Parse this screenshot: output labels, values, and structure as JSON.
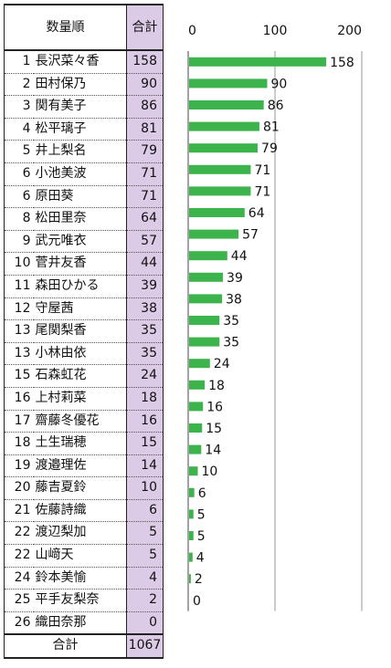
{
  "table": {
    "header_label": "数量順",
    "header_total": "合計",
    "footer_label": "合計",
    "footer_total": "1067",
    "rows": [
      {
        "rank": "1",
        "name": "長沢菜々香",
        "total": "158"
      },
      {
        "rank": "2",
        "name": "田村保乃",
        "total": "90"
      },
      {
        "rank": "3",
        "name": "関有美子",
        "total": "86"
      },
      {
        "rank": "4",
        "name": "松平璃子",
        "total": "81"
      },
      {
        "rank": "5",
        "name": "井上梨名",
        "total": "79"
      },
      {
        "rank": "6",
        "name": "小池美波",
        "total": "71"
      },
      {
        "rank": "6",
        "name": "原田葵",
        "total": "71"
      },
      {
        "rank": "8",
        "name": "松田里奈",
        "total": "64"
      },
      {
        "rank": "9",
        "name": "武元唯衣",
        "total": "57"
      },
      {
        "rank": "10",
        "name": "菅井友香",
        "total": "44"
      },
      {
        "rank": "11",
        "name": "森田ひかる",
        "total": "39"
      },
      {
        "rank": "12",
        "name": "守屋茜",
        "total": "38"
      },
      {
        "rank": "13",
        "name": "尾関梨香",
        "total": "35"
      },
      {
        "rank": "13",
        "name": "小林由依",
        "total": "35"
      },
      {
        "rank": "15",
        "name": "石森虹花",
        "total": "24"
      },
      {
        "rank": "16",
        "name": "上村莉菜",
        "total": "18"
      },
      {
        "rank": "17",
        "name": "齋藤冬優花",
        "total": "16"
      },
      {
        "rank": "18",
        "name": "土生瑞穂",
        "total": "15"
      },
      {
        "rank": "19",
        "name": "渡邉理佐",
        "total": "14"
      },
      {
        "rank": "20",
        "name": "藤吉夏鈴",
        "total": "10"
      },
      {
        "rank": "21",
        "name": "佐藤詩織",
        "total": "6"
      },
      {
        "rank": "22",
        "name": "渡辺梨加",
        "total": "5"
      },
      {
        "rank": "22",
        "name": "山﨑天",
        "total": "5"
      },
      {
        "rank": "24",
        "name": "鈴本美愉",
        "total": "4"
      },
      {
        "rank": "25",
        "name": "平手友梨奈",
        "total": "2"
      },
      {
        "rank": "26",
        "name": "織田奈那",
        "total": "0"
      }
    ]
  },
  "colors": {
    "bar": "#3cb44b",
    "total_column": "#dccbe6",
    "gridline": "#999999"
  },
  "chart_data": {
    "type": "bar",
    "orientation": "horizontal",
    "title": "",
    "xlabel": "",
    "ylabel": "",
    "xlim": [
      0,
      200
    ],
    "x_ticks": [
      "0",
      "100",
      "200"
    ],
    "grid": true,
    "categories": [
      "長沢菜々香",
      "田村保乃",
      "関有美子",
      "松平璃子",
      "井上梨名",
      "小池美波",
      "原田葵",
      "松田里奈",
      "武元唯衣",
      "菅井友香",
      "森田ひかる",
      "守屋茜",
      "尾関梨香",
      "小林由依",
      "石森虹花",
      "上村莉菜",
      "齋藤冬優花",
      "土生瑞穂",
      "渡邉理佐",
      "藤吉夏鈴",
      "佐藤詩織",
      "渡辺梨加",
      "山﨑天",
      "鈴本美愉",
      "平手友梨奈",
      "織田奈那"
    ],
    "values": [
      158,
      90,
      86,
      81,
      79,
      71,
      71,
      64,
      57,
      44,
      39,
      38,
      35,
      35,
      24,
      18,
      16,
      15,
      14,
      10,
      6,
      5,
      5,
      4,
      2,
      0
    ],
    "data_labels": [
      "158",
      "90",
      "86",
      "81",
      "79",
      "71",
      "71",
      "64",
      "57",
      "44",
      "39",
      "38",
      "35",
      "35",
      "24",
      "18",
      "16",
      "15",
      "14",
      "10",
      "6",
      "5",
      "5",
      "4",
      "2",
      "0"
    ]
  }
}
